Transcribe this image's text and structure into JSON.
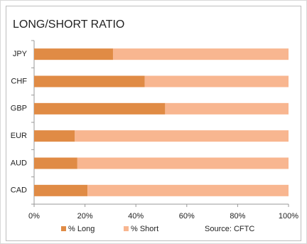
{
  "chart_data": {
    "type": "stacked-bar-horizontal",
    "title": "LONG/SHORT RATIO",
    "categories": [
      "JPY",
      "CHF",
      "GBP",
      "EUR",
      "AUD",
      "CAD"
    ],
    "series": [
      {
        "name": "% Long",
        "color": "#e08b45",
        "values": [
          31,
          43.5,
          51.5,
          16,
          17,
          21
        ]
      },
      {
        "name": "% Short",
        "color": "#f8b690",
        "values": [
          69,
          56.5,
          48.5,
          84,
          83,
          79
        ]
      }
    ],
    "xlim": [
      0,
      100
    ],
    "xticks": [
      {
        "value": 0,
        "label": "0%"
      },
      {
        "value": 20,
        "label": "20%"
      },
      {
        "value": 40,
        "label": "40%"
      },
      {
        "value": 60,
        "label": "60%"
      },
      {
        "value": 80,
        "label": "80%"
      },
      {
        "value": 100,
        "label": "100%"
      }
    ],
    "annotation": "Source: CFTC"
  }
}
